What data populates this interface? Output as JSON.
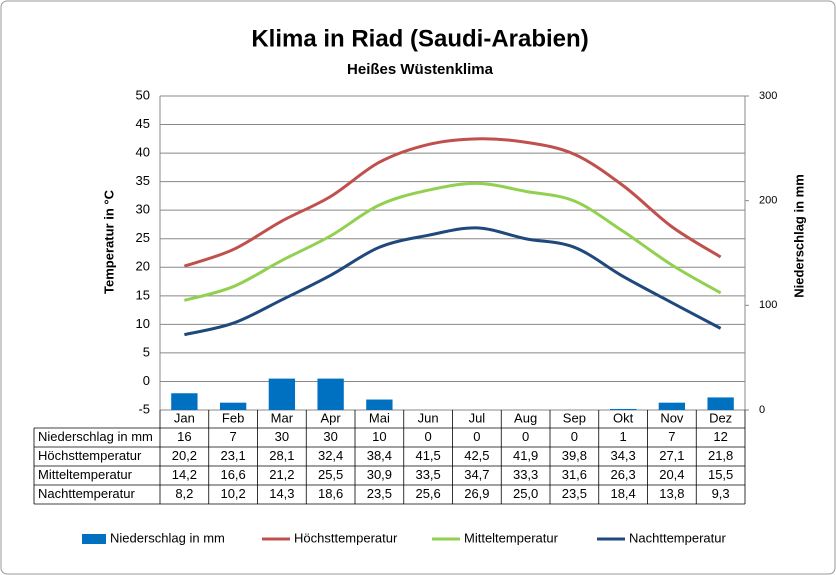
{
  "chart_data": {
    "type": "combo",
    "title": "Klima in Riad (Saudi-Arabien)",
    "subtitle": "Heißes Wüstenklima",
    "ylabel": "Temperatur in °C",
    "y2label": "Niederschlag in mm",
    "categories": [
      "Jan",
      "Feb",
      "Mar",
      "Apr",
      "Mai",
      "Jun",
      "Jul",
      "Aug",
      "Sep",
      "Okt",
      "Nov",
      "Dez"
    ],
    "ylim": [
      -5,
      50
    ],
    "yticks": [
      -5,
      0,
      5,
      10,
      15,
      20,
      25,
      30,
      35,
      40,
      45,
      50
    ],
    "y2lim": [
      0,
      300
    ],
    "y2ticks": [
      0,
      100,
      200,
      300
    ],
    "grid": true,
    "legend": "bottom",
    "series": [
      {
        "name": "Niederschlag in mm",
        "kind": "bar",
        "axis": "y2",
        "color": "#0070c0",
        "values": [
          16,
          7,
          30,
          30,
          10,
          0,
          0,
          0,
          0,
          1,
          7,
          12
        ]
      },
      {
        "name": "Höchsttemperatur",
        "kind": "line",
        "color": "#c0504d",
        "values": [
          20.2,
          23.1,
          28.1,
          32.4,
          38.4,
          41.5,
          42.5,
          41.9,
          39.8,
          34.3,
          27.1,
          21.8
        ],
        "value_labels": [
          "20,2",
          "23,1",
          "28,1",
          "32,4",
          "38,4",
          "41,5",
          "42,5",
          "41,9",
          "39,8",
          "34,3",
          "27,1",
          "21,8"
        ]
      },
      {
        "name": "Mitteltemperatur",
        "kind": "line",
        "color": "#92d050",
        "values": [
          14.2,
          16.6,
          21.2,
          25.5,
          30.9,
          33.5,
          34.7,
          33.3,
          31.6,
          26.3,
          20.4,
          15.5
        ],
        "value_labels": [
          "14,2",
          "16,6",
          "21,2",
          "25,5",
          "30,9",
          "33,5",
          "34,7",
          "33,3",
          "31,6",
          "26,3",
          "20,4",
          "15,5"
        ]
      },
      {
        "name": "Nachttemperatur",
        "kind": "line",
        "color": "#1f497d",
        "values": [
          8.2,
          10.2,
          14.3,
          18.6,
          23.5,
          25.6,
          26.9,
          25.0,
          23.5,
          18.4,
          13.8,
          9.3
        ],
        "value_labels": [
          "8,2",
          "10,2",
          "14,3",
          "18,6",
          "23,5",
          "25,6",
          "26,9",
          "25,0",
          "23,5",
          "18,4",
          "13,8",
          "9,3"
        ]
      }
    ]
  }
}
